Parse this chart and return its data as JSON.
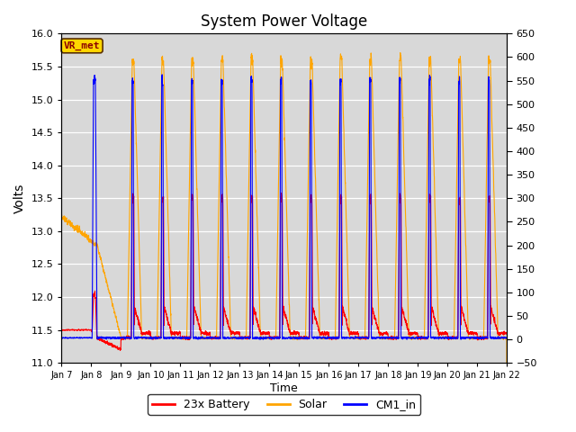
{
  "title": "System Power Voltage",
  "xlabel": "Time",
  "ylabel": "Volts",
  "ylim_left": [
    11.0,
    16.0
  ],
  "ylim_right": [
    -50,
    650
  ],
  "yticks_left": [
    11.0,
    11.5,
    12.0,
    12.5,
    13.0,
    13.5,
    14.0,
    14.5,
    15.0,
    15.5,
    16.0
  ],
  "yticks_right": [
    -50,
    0,
    50,
    100,
    150,
    200,
    250,
    300,
    350,
    400,
    450,
    500,
    550,
    600,
    650
  ],
  "xtick_labels": [
    "Jan 7",
    "Jan 8",
    "Jan 9",
    "Jan 10",
    "Jan 11",
    "Jan 12",
    "Jan 13",
    "Jan 14",
    "Jan 15",
    "Jan 16",
    "Jan 17",
    "Jan 18",
    "Jan 19",
    "Jan 20",
    "Jan 21",
    "Jan 22"
  ],
  "annotation_text": "VR_met",
  "annotation_color": "#8B0000",
  "annotation_bg": "#FFD700",
  "battery_color": "red",
  "solar_color": "orange",
  "cm1_color": "blue",
  "bg_color": "#d8d8d8",
  "grid_color": "white",
  "title_fontsize": 12
}
